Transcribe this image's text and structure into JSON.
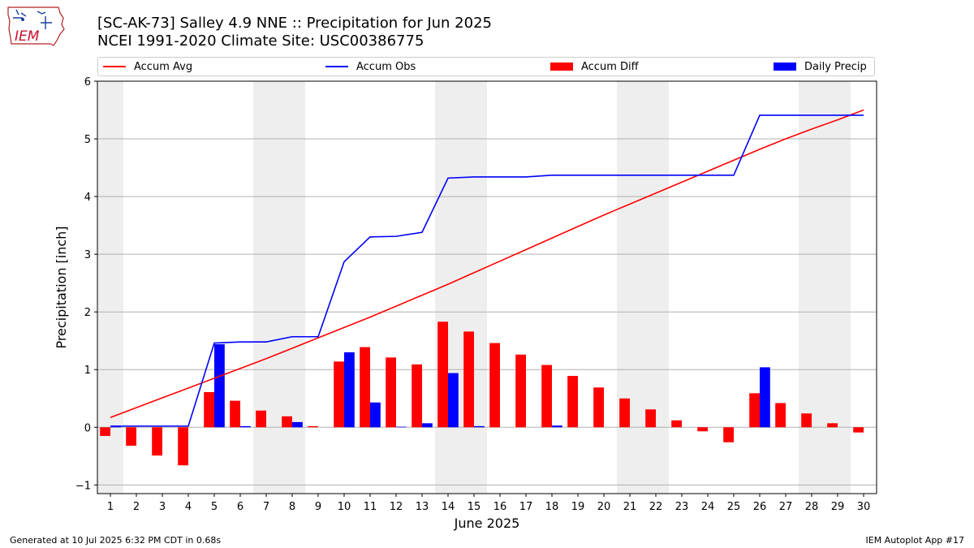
{
  "header": {
    "title_line1": "[SC-AK-73] Salley 4.9 NNE :: Precipitation for Jun 2025",
    "title_line2": "NCEI 1991-2020 Climate Site: USC00386775"
  },
  "logo": {
    "text": "IEM",
    "icon": "iowa-state-logo-icon"
  },
  "footer": {
    "left": "Generated at 10 Jul 2025 6:32 PM CDT in 0.68s",
    "right": "IEM Autoplot App #17"
  },
  "colors": {
    "avg": "#ff0000",
    "obs": "#0000ff",
    "diff": "#ff0000",
    "daily": "#0000ff",
    "weekend": "#eeeeee",
    "grid": "#b0b0b0"
  },
  "chart_data": {
    "type": "bar",
    "xlabel": "June 2025",
    "ylabel": "Precipitation [inch]",
    "ylim": [
      -1.15,
      6
    ],
    "yticks": [
      -1,
      0,
      1,
      2,
      3,
      4,
      5,
      6
    ],
    "xlim": [
      0.5,
      30.5
    ],
    "grid": "horizontal",
    "legend_placement": "top",
    "categories": [
      "1",
      "2",
      "3",
      "4",
      "5",
      "6",
      "7",
      "8",
      "9",
      "10",
      "11",
      "12",
      "13",
      "14",
      "15",
      "16",
      "17",
      "18",
      "19",
      "20",
      "21",
      "22",
      "23",
      "24",
      "25",
      "26",
      "27",
      "28",
      "29",
      "30"
    ],
    "weekend_spans": [
      [
        0.5,
        1.5
      ],
      [
        6.5,
        8.5
      ],
      [
        13.5,
        15.5
      ],
      [
        20.5,
        22.5
      ],
      [
        27.5,
        29.5
      ]
    ],
    "series": [
      {
        "name": "Accum Avg",
        "kind": "line",
        "color": "#ff0000",
        "values": [
          0.17,
          0.34,
          0.51,
          0.68,
          0.85,
          1.02,
          1.19,
          1.37,
          1.55,
          1.73,
          1.91,
          2.1,
          2.29,
          2.48,
          2.68,
          2.88,
          3.08,
          3.28,
          3.48,
          3.68,
          3.87,
          4.06,
          4.25,
          4.44,
          4.63,
          4.82,
          5.0,
          5.17,
          5.33,
          5.5
        ]
      },
      {
        "name": "Accum Obs",
        "kind": "line",
        "color": "#0000ff",
        "values": [
          0.02,
          0.02,
          0.02,
          0.02,
          1.46,
          1.48,
          1.48,
          1.57,
          1.57,
          2.87,
          3.3,
          3.31,
          3.38,
          4.32,
          4.34,
          4.34,
          4.34,
          4.37,
          4.37,
          4.37,
          4.37,
          4.37,
          4.37,
          4.37,
          4.37,
          5.41,
          5.41,
          5.41,
          5.41,
          5.41
        ]
      },
      {
        "name": "Accum Diff",
        "kind": "bar",
        "color": "#ff0000",
        "values": [
          -0.15,
          -0.32,
          -0.49,
          -0.66,
          0.61,
          0.46,
          0.29,
          0.19,
          0.02,
          1.14,
          1.39,
          1.21,
          1.09,
          1.83,
          1.66,
          1.46,
          1.26,
          1.08,
          0.89,
          0.69,
          0.5,
          0.31,
          0.12,
          -0.07,
          -0.26,
          0.59,
          0.42,
          0.24,
          0.07,
          -0.09
        ]
      },
      {
        "name": "Daily Precip",
        "kind": "bar",
        "color": "#0000ff",
        "values": [
          0.02,
          0,
          0,
          0,
          1.44,
          0.02,
          0,
          0.09,
          0,
          1.3,
          0.43,
          0.01,
          0.07,
          0.94,
          0.02,
          0,
          0,
          0.03,
          0,
          0,
          0,
          0,
          0,
          0,
          0,
          1.04,
          0,
          0,
          0,
          0
        ]
      }
    ]
  }
}
